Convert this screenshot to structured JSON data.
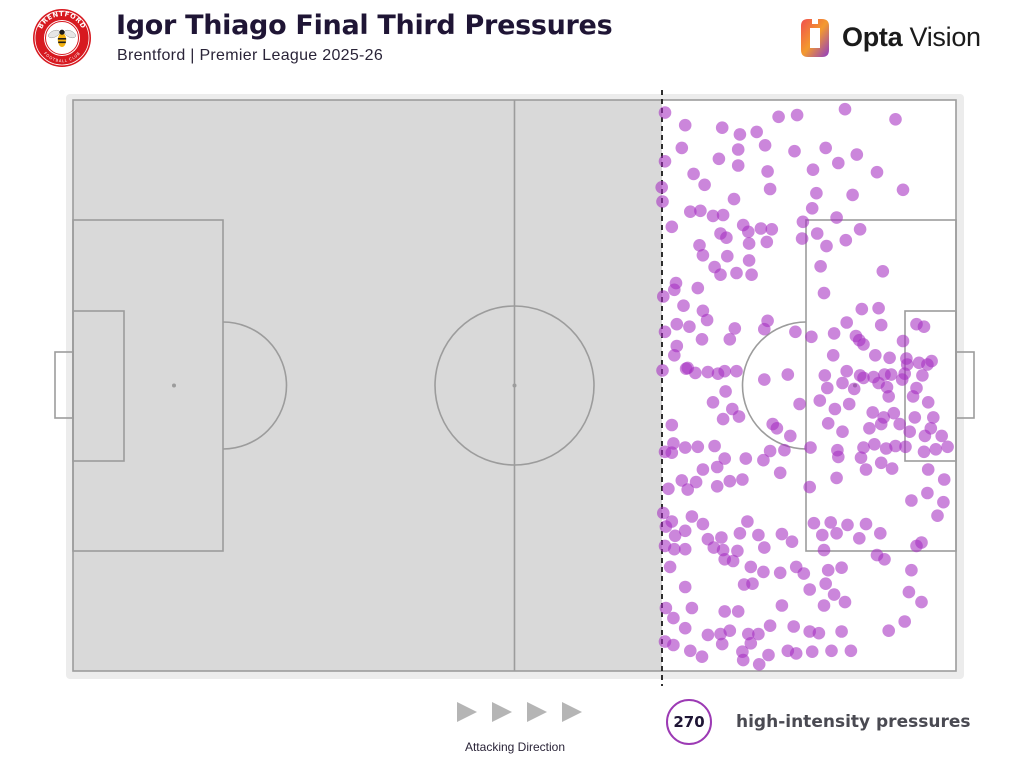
{
  "header": {
    "title": "Igor Thiago Final Third Pressures",
    "subtitle": "Brentford | Premier League 2025-26",
    "team_crest": {
      "icon": "brentford-crest-icon",
      "ring_top_text": "BRENTFORD",
      "ring_bottom_text": "FOOTBALL CLUB",
      "colors": {
        "ring": "#d71920",
        "inner": "#ffffff",
        "bee": "#f2b111"
      }
    },
    "logo": {
      "icon": "opta-vision-logo-icon",
      "word1": "Opta",
      "word2": "Vision",
      "gradient": [
        "#f04e4e",
        "#f39a2e",
        "#8e3bc6"
      ]
    }
  },
  "chart_data": {
    "type": "scatter",
    "title": "Igor Thiago Final Third Pressures",
    "subtitle": "Brentford | Premier League 2025-26",
    "x_unit": "metres from own goal line (pitch length 105)",
    "y_unit": "metres across pitch (width 68)",
    "xlim": [
      0,
      105
    ],
    "ylim": [
      0,
      68
    ],
    "final_third_line_x": 70,
    "grid": false,
    "shaded_region": "own two-thirds",
    "marker_color": "#a62fc1",
    "point_count_note": "approximate readout of points visible",
    "points": [
      [
        70.4,
        66.5
      ],
      [
        72.8,
        65.0
      ],
      [
        77.2,
        64.7
      ],
      [
        79.3,
        63.9
      ],
      [
        81.3,
        64.2
      ],
      [
        83.9,
        66.0
      ],
      [
        86.1,
        66.2
      ],
      [
        91.8,
        66.9
      ],
      [
        97.8,
        65.7
      ],
      [
        72.4,
        62.3
      ],
      [
        76.8,
        61.0
      ],
      [
        79.1,
        62.1
      ],
      [
        82.3,
        62.6
      ],
      [
        85.8,
        61.9
      ],
      [
        89.5,
        62.3
      ],
      [
        93.2,
        61.5
      ],
      [
        70.4,
        60.7
      ],
      [
        73.8,
        59.2
      ],
      [
        79.1,
        60.2
      ],
      [
        82.6,
        59.5
      ],
      [
        88.0,
        59.7
      ],
      [
        91.0,
        60.5
      ],
      [
        95.6,
        59.4
      ],
      [
        70.0,
        57.6
      ],
      [
        75.1,
        57.9
      ],
      [
        78.6,
        56.2
      ],
      [
        82.9,
        57.4
      ],
      [
        88.4,
        56.9
      ],
      [
        92.7,
        56.7
      ],
      [
        70.1,
        55.9
      ],
      [
        74.6,
        54.8
      ],
      [
        76.1,
        54.2
      ],
      [
        77.3,
        54.3
      ],
      [
        79.7,
        53.1
      ],
      [
        81.8,
        52.7
      ],
      [
        87.9,
        55.1
      ],
      [
        90.8,
        54.0
      ],
      [
        98.7,
        57.3
      ],
      [
        71.2,
        52.9
      ],
      [
        73.4,
        54.7
      ],
      [
        77.0,
        52.1
      ],
      [
        80.3,
        52.3
      ],
      [
        83.1,
        52.6
      ],
      [
        86.8,
        53.5
      ],
      [
        88.5,
        52.1
      ],
      [
        93.6,
        52.6
      ],
      [
        74.5,
        50.7
      ],
      [
        77.7,
        51.6
      ],
      [
        80.4,
        50.9
      ],
      [
        82.5,
        51.1
      ],
      [
        86.7,
        51.5
      ],
      [
        89.6,
        50.6
      ],
      [
        91.9,
        51.3
      ],
      [
        74.9,
        49.5
      ],
      [
        77.8,
        49.4
      ],
      [
        80.4,
        48.9
      ],
      [
        76.3,
        48.1
      ],
      [
        77.0,
        47.2
      ],
      [
        78.9,
        47.4
      ],
      [
        80.7,
        47.2
      ],
      [
        88.9,
        48.2
      ],
      [
        96.3,
        47.6
      ],
      [
        71.7,
        46.2
      ],
      [
        71.5,
        45.4
      ],
      [
        74.3,
        45.6
      ],
      [
        89.3,
        45.0
      ],
      [
        72.6,
        43.5
      ],
      [
        70.2,
        44.6
      ],
      [
        74.9,
        42.9
      ],
      [
        71.8,
        41.3
      ],
      [
        73.3,
        41.0
      ],
      [
        75.4,
        41.8
      ],
      [
        78.7,
        40.8
      ],
      [
        82.6,
        41.7
      ],
      [
        92.0,
        41.5
      ],
      [
        93.8,
        43.1
      ],
      [
        95.8,
        43.2
      ],
      [
        101.2,
        41.0
      ],
      [
        98.7,
        39.3
      ],
      [
        70.4,
        40.4
      ],
      [
        71.8,
        38.7
      ],
      [
        74.8,
        39.5
      ],
      [
        78.1,
        39.5
      ],
      [
        82.2,
        40.7
      ],
      [
        85.9,
        40.4
      ],
      [
        87.8,
        39.8
      ],
      [
        90.5,
        40.2
      ],
      [
        93.5,
        39.4
      ],
      [
        96.1,
        41.2
      ],
      [
        100.3,
        41.3
      ],
      [
        93.1,
        39.9
      ],
      [
        94.0,
        38.9
      ],
      [
        90.4,
        37.6
      ],
      [
        95.4,
        37.6
      ],
      [
        97.1,
        37.3
      ],
      [
        99.1,
        37.2
      ],
      [
        100.6,
        36.7
      ],
      [
        101.6,
        36.5
      ],
      [
        102.1,
        36.9
      ],
      [
        71.5,
        37.6
      ],
      [
        70.1,
        35.8
      ],
      [
        72.9,
        36.0
      ],
      [
        74.0,
        35.5
      ],
      [
        75.5,
        35.6
      ],
      [
        76.7,
        35.4
      ],
      [
        77.5,
        35.7
      ],
      [
        78.9,
        35.7
      ],
      [
        85.0,
        35.3
      ],
      [
        89.4,
        35.2
      ],
      [
        92.0,
        35.7
      ],
      [
        93.6,
        35.2
      ],
      [
        95.2,
        35.0
      ],
      [
        96.5,
        35.3
      ],
      [
        97.3,
        35.3
      ],
      [
        98.9,
        35.4
      ],
      [
        101.0,
        35.2
      ],
      [
        99.2,
        36.5
      ],
      [
        73.1,
        36.1
      ],
      [
        77.6,
        33.3
      ],
      [
        82.2,
        34.7
      ],
      [
        89.7,
        33.7
      ],
      [
        91.5,
        34.3
      ],
      [
        92.9,
        33.6
      ],
      [
        94.0,
        34.9
      ],
      [
        95.8,
        34.3
      ],
      [
        96.8,
        33.8
      ],
      [
        98.6,
        34.7
      ],
      [
        100.3,
        33.7
      ],
      [
        76.1,
        32.0
      ],
      [
        78.4,
        31.2
      ],
      [
        86.4,
        31.8
      ],
      [
        88.8,
        32.2
      ],
      [
        90.6,
        31.2
      ],
      [
        92.3,
        31.8
      ],
      [
        97.0,
        32.7
      ],
      [
        99.9,
        32.7
      ],
      [
        101.7,
        32.0
      ],
      [
        77.3,
        30.0
      ],
      [
        79.2,
        30.3
      ],
      [
        83.2,
        29.4
      ],
      [
        95.1,
        30.8
      ],
      [
        96.4,
        30.2
      ],
      [
        97.6,
        30.7
      ],
      [
        100.1,
        30.2
      ],
      [
        102.3,
        30.2
      ],
      [
        71.2,
        29.3
      ],
      [
        83.7,
        28.9
      ],
      [
        85.3,
        28.0
      ],
      [
        89.8,
        29.5
      ],
      [
        91.5,
        28.5
      ],
      [
        94.7,
        28.9
      ],
      [
        96.1,
        29.4
      ],
      [
        98.3,
        29.4
      ],
      [
        99.5,
        28.5
      ],
      [
        101.3,
        28.0
      ],
      [
        103.3,
        28.0
      ],
      [
        102.0,
        28.9
      ],
      [
        71.4,
        27.1
      ],
      [
        72.8,
        26.6
      ],
      [
        76.3,
        26.8
      ],
      [
        84.6,
        26.3
      ],
      [
        87.7,
        26.6
      ],
      [
        90.9,
        26.3
      ],
      [
        94.0,
        26.6
      ],
      [
        95.3,
        27.0
      ],
      [
        96.7,
        26.5
      ],
      [
        97.8,
        26.8
      ],
      [
        99.0,
        26.7
      ],
      [
        101.2,
        26.1
      ],
      [
        102.6,
        26.4
      ],
      [
        104.0,
        26.7
      ],
      [
        70.4,
        26.1
      ],
      [
        71.2,
        26.0
      ],
      [
        74.3,
        26.7
      ],
      [
        77.5,
        25.3
      ],
      [
        80.0,
        25.3
      ],
      [
        82.1,
        25.1
      ],
      [
        82.9,
        26.2
      ],
      [
        91.0,
        25.5
      ],
      [
        93.7,
        25.4
      ],
      [
        96.1,
        24.8
      ],
      [
        97.4,
        24.1
      ],
      [
        94.3,
        24.0
      ],
      [
        74.9,
        24.0
      ],
      [
        76.6,
        24.3
      ],
      [
        72.4,
        22.7
      ],
      [
        74.1,
        22.5
      ],
      [
        79.6,
        22.8
      ],
      [
        84.1,
        23.6
      ],
      [
        90.8,
        23.0
      ],
      [
        101.7,
        24.0
      ],
      [
        103.6,
        22.8
      ],
      [
        70.8,
        21.7
      ],
      [
        73.1,
        21.6
      ],
      [
        76.6,
        22.0
      ],
      [
        78.1,
        22.6
      ],
      [
        87.6,
        21.9
      ],
      [
        101.6,
        21.2
      ],
      [
        70.2,
        18.8
      ],
      [
        71.2,
        17.8
      ],
      [
        73.6,
        18.4
      ],
      [
        74.9,
        17.5
      ],
      [
        80.2,
        17.8
      ],
      [
        88.1,
        17.6
      ],
      [
        90.1,
        17.7
      ],
      [
        92.1,
        17.4
      ],
      [
        94.3,
        17.5
      ],
      [
        102.8,
        18.5
      ],
      [
        103.5,
        20.1
      ],
      [
        99.7,
        20.3
      ],
      [
        70.5,
        17.2
      ],
      [
        71.6,
        16.1
      ],
      [
        72.8,
        16.7
      ],
      [
        75.5,
        15.7
      ],
      [
        77.1,
        15.9
      ],
      [
        79.3,
        16.4
      ],
      [
        81.5,
        16.2
      ],
      [
        84.3,
        16.3
      ],
      [
        89.1,
        16.2
      ],
      [
        90.8,
        16.4
      ],
      [
        93.5,
        15.8
      ],
      [
        96.0,
        16.4
      ],
      [
        100.9,
        15.3
      ],
      [
        70.4,
        14.9
      ],
      [
        71.5,
        14.5
      ],
      [
        72.8,
        14.5
      ],
      [
        76.2,
        14.7
      ],
      [
        77.3,
        14.4
      ],
      [
        79.0,
        14.3
      ],
      [
        82.2,
        14.7
      ],
      [
        85.5,
        15.4
      ],
      [
        89.3,
        14.4
      ],
      [
        95.6,
        13.8
      ],
      [
        100.3,
        14.9
      ],
      [
        71.0,
        12.4
      ],
      [
        77.5,
        13.3
      ],
      [
        78.5,
        13.1
      ],
      [
        80.6,
        12.4
      ],
      [
        82.1,
        11.8
      ],
      [
        84.1,
        11.7
      ],
      [
        86.0,
        12.4
      ],
      [
        86.9,
        11.6
      ],
      [
        89.8,
        12.0
      ],
      [
        91.4,
        12.3
      ],
      [
        96.5,
        13.3
      ],
      [
        99.7,
        12.0
      ],
      [
        72.8,
        10.0
      ],
      [
        79.8,
        10.3
      ],
      [
        80.8,
        10.4
      ],
      [
        87.6,
        9.7
      ],
      [
        89.5,
        10.4
      ],
      [
        90.5,
        9.1
      ],
      [
        99.4,
        9.4
      ],
      [
        100.9,
        8.2
      ],
      [
        73.6,
        7.5
      ],
      [
        77.5,
        7.1
      ],
      [
        79.1,
        7.1
      ],
      [
        84.3,
        7.8
      ],
      [
        89.3,
        7.8
      ],
      [
        91.8,
        8.2
      ],
      [
        70.5,
        7.5
      ],
      [
        71.4,
        6.3
      ],
      [
        72.8,
        5.1
      ],
      [
        75.5,
        4.3
      ],
      [
        77.0,
        4.4
      ],
      [
        78.1,
        4.8
      ],
      [
        80.3,
        4.4
      ],
      [
        81.5,
        4.4
      ],
      [
        82.9,
        5.4
      ],
      [
        85.7,
        5.3
      ],
      [
        87.6,
        4.7
      ],
      [
        88.7,
        4.5
      ],
      [
        91.4,
        4.7
      ],
      [
        97.0,
        4.8
      ],
      [
        98.9,
        5.9
      ],
      [
        70.4,
        3.5
      ],
      [
        71.4,
        3.1
      ],
      [
        73.4,
        2.4
      ],
      [
        74.8,
        1.7
      ],
      [
        77.2,
        3.2
      ],
      [
        79.6,
        2.3
      ],
      [
        80.6,
        3.3
      ],
      [
        82.7,
        1.9
      ],
      [
        85.0,
        2.4
      ],
      [
        86.0,
        2.1
      ],
      [
        87.9,
        2.3
      ],
      [
        90.2,
        2.4
      ],
      [
        92.5,
        2.4
      ],
      [
        79.7,
        1.3
      ],
      [
        81.6,
        0.8
      ]
    ]
  },
  "legend": {
    "count": "270",
    "count_label": "high-intensity pressures"
  },
  "footer": {
    "attacking_label": "Attacking Direction",
    "arrow_icon": "triangle-right-icon",
    "arrow_count": 4,
    "arrow_color": "#b5b5b5"
  },
  "colors": {
    "background": "#ffffff",
    "pitch_shaded": "#d9d9d9",
    "pitch_border": "#e8e8e8",
    "pitch_lines": "#9c9c9c",
    "final_third_line": "#1a1a1a",
    "accent_purple": "#9c3ab4",
    "title_color": "#1f1535"
  }
}
